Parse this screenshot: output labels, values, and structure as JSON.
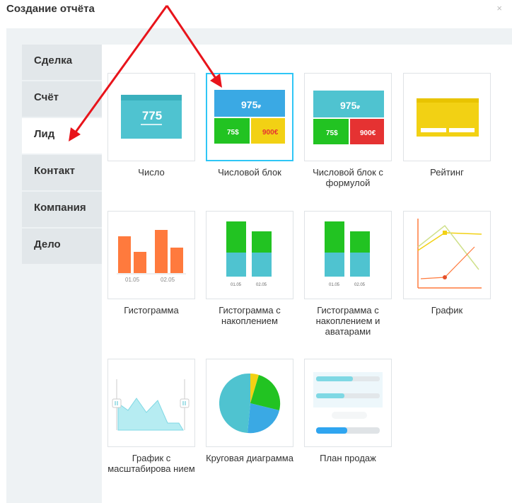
{
  "dialog": {
    "title": "Создание отчёта",
    "close_glyph": "×"
  },
  "tabs": [
    {
      "label": "Сделка",
      "active": false
    },
    {
      "label": "Счёт",
      "active": false
    },
    {
      "label": "Лид",
      "active": true
    },
    {
      "label": "Контакт",
      "active": false
    },
    {
      "label": "Компания",
      "active": false
    },
    {
      "label": "Дело",
      "active": false
    }
  ],
  "tiles": [
    {
      "caption": "Число",
      "icon": "number-widget"
    },
    {
      "caption": "Числовой блок",
      "icon": "number-block-widget",
      "selected": true
    },
    {
      "caption": "Числовой блок с формулой",
      "icon": "number-block-formula-widget"
    },
    {
      "caption": "Рейтинг",
      "icon": "rating-widget"
    },
    {
      "caption": "Гистограмма",
      "icon": "histogram-widget"
    },
    {
      "caption": "Гистограмма с накоплением",
      "icon": "stacked-histogram-widget"
    },
    {
      "caption": "Гистограмма с накоплением и аватарами",
      "icon": "stacked-histogram-avatars-widget"
    },
    {
      "caption": "График",
      "icon": "line-chart-widget"
    },
    {
      "caption": "График с масштабирова нием",
      "icon": "zoom-chart-widget"
    },
    {
      "caption": "Круговая диаграмма",
      "icon": "pie-chart-widget"
    },
    {
      "caption": "План продаж",
      "icon": "sales-plan-widget"
    }
  ],
  "previews": {
    "number": "775",
    "block_total": "975",
    "block_currency": "₽",
    "block_left": "75",
    "block_left_unit": "$",
    "block_right": "900",
    "block_right_unit": "€",
    "axis_a": "01.05",
    "axis_b": "02.05"
  },
  "colors": {
    "accent": "#2fc6f6",
    "teal": "#4fc3d0",
    "blue": "#3aa9e4",
    "green": "#22c322",
    "yellow": "#f2d114",
    "red": "#e53232",
    "orange": "#ff7a3d",
    "arrow": "#e8141b"
  }
}
